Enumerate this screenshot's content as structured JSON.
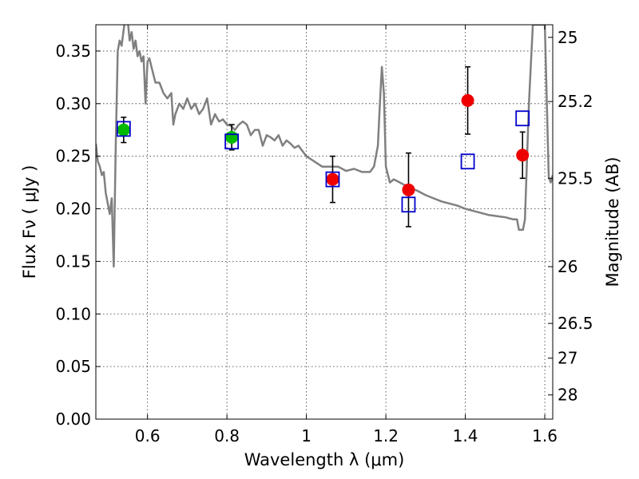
{
  "chart_data": {
    "type": "scatter",
    "xlabel": "Wavelength  λ (μm)",
    "ylabel": "Flux  Fν  ( μJy )",
    "ylabel_right": "Magnitude (AB)",
    "xlim": [
      0.47,
      1.62
    ],
    "ylim": [
      0.0,
      0.375
    ],
    "grid": true,
    "x_ticks": [
      0.6,
      0.8,
      1.0,
      1.2,
      1.4,
      1.6
    ],
    "x_tick_labels": [
      "0.6",
      "0.8",
      "1",
      "1.2",
      "1.4",
      "1.6"
    ],
    "y_ticks": [
      0.0,
      0.05,
      0.1,
      0.15,
      0.2,
      0.25,
      0.3,
      0.35
    ],
    "y_tick_labels": [
      "0.00",
      "0.05",
      "0.10",
      "0.15",
      "0.20",
      "0.25",
      "0.30",
      "0.35"
    ],
    "right_ticks": [
      {
        "label": "25",
        "flux": 0.363
      },
      {
        "label": "25.2",
        "flux": 0.302
      },
      {
        "label": "25.5",
        "flux": 0.229
      },
      {
        "label": "26",
        "flux": 0.145
      },
      {
        "label": "26.5",
        "flux": 0.091
      },
      {
        "label": "27",
        "flux": 0.058
      },
      {
        "label": "28",
        "flux": 0.023
      }
    ],
    "series": [
      {
        "name": "model spectrum",
        "kind": "line",
        "color": "#808080",
        "x": [
          0.47,
          0.475,
          0.48,
          0.485,
          0.49,
          0.495,
          0.5,
          0.505,
          0.51,
          0.515,
          0.52,
          0.525,
          0.53,
          0.535,
          0.54,
          0.545,
          0.55,
          0.555,
          0.56,
          0.565,
          0.57,
          0.575,
          0.58,
          0.585,
          0.59,
          0.595,
          0.6,
          0.605,
          0.61,
          0.62,
          0.63,
          0.64,
          0.65,
          0.66,
          0.665,
          0.67,
          0.68,
          0.69,
          0.7,
          0.71,
          0.72,
          0.73,
          0.74,
          0.75,
          0.76,
          0.77,
          0.78,
          0.79,
          0.8,
          0.81,
          0.82,
          0.83,
          0.84,
          0.85,
          0.86,
          0.87,
          0.88,
          0.89,
          0.9,
          0.91,
          0.92,
          0.93,
          0.94,
          0.95,
          0.96,
          0.97,
          0.98,
          0.99,
          1.0,
          1.02,
          1.04,
          1.06,
          1.08,
          1.1,
          1.12,
          1.14,
          1.16,
          1.17,
          1.18,
          1.185,
          1.19,
          1.195,
          1.2,
          1.21,
          1.22,
          1.24,
          1.26,
          1.28,
          1.3,
          1.32,
          1.34,
          1.36,
          1.38,
          1.4,
          1.42,
          1.44,
          1.46,
          1.48,
          1.5,
          1.52,
          1.53,
          1.535,
          1.54,
          1.545,
          1.55,
          1.56,
          1.57,
          1.575,
          1.58,
          1.585,
          1.59,
          1.6,
          1.61,
          1.615,
          1.62
        ],
        "y": [
          0.262,
          0.245,
          0.24,
          0.232,
          0.235,
          0.215,
          0.205,
          0.195,
          0.21,
          0.145,
          0.26,
          0.35,
          0.36,
          0.355,
          0.37,
          0.385,
          0.38,
          0.36,
          0.368,
          0.352,
          0.36,
          0.345,
          0.35,
          0.34,
          0.345,
          0.3,
          0.34,
          0.343,
          0.335,
          0.32,
          0.32,
          0.31,
          0.305,
          0.31,
          0.28,
          0.29,
          0.3,
          0.295,
          0.305,
          0.295,
          0.3,
          0.29,
          0.295,
          0.305,
          0.28,
          0.29,
          0.283,
          0.285,
          0.28,
          0.279,
          0.275,
          0.28,
          0.283,
          0.28,
          0.27,
          0.275,
          0.275,
          0.26,
          0.27,
          0.268,
          0.265,
          0.27,
          0.26,
          0.265,
          0.262,
          0.258,
          0.26,
          0.255,
          0.25,
          0.245,
          0.24,
          0.24,
          0.24,
          0.236,
          0.238,
          0.235,
          0.235,
          0.24,
          0.26,
          0.3,
          0.335,
          0.31,
          0.24,
          0.225,
          0.228,
          0.224,
          0.22,
          0.217,
          0.213,
          0.21,
          0.207,
          0.205,
          0.203,
          0.2,
          0.198,
          0.196,
          0.194,
          0.193,
          0.192,
          0.19,
          0.19,
          0.18,
          0.18,
          0.18,
          0.19,
          0.3,
          0.375,
          0.375,
          0.375,
          0.375,
          0.375,
          0.375,
          0.23,
          0.225,
          0.232
        ]
      },
      {
        "name": "observed (green)",
        "kind": "marker",
        "marker": "circle",
        "color": "#00bb00",
        "x": [
          0.54,
          0.812
        ],
        "y": [
          0.275,
          0.268
        ],
        "yerr": [
          0.012,
          0.012
        ]
      },
      {
        "name": "observed (red)",
        "kind": "marker",
        "marker": "circle",
        "color": "#ee0000",
        "x": [
          1.066,
          1.257,
          1.406,
          1.544
        ],
        "y": [
          0.228,
          0.218,
          0.303,
          0.251
        ],
        "yerr": [
          0.022,
          0.035,
          0.032,
          0.022
        ]
      },
      {
        "name": "model photometry",
        "kind": "marker",
        "marker": "open-square",
        "color": "#0000cc",
        "x": [
          0.54,
          0.812,
          1.066,
          1.257,
          1.406,
          1.544
        ],
        "y": [
          0.276,
          0.264,
          0.228,
          0.204,
          0.245,
          0.286
        ]
      }
    ]
  }
}
